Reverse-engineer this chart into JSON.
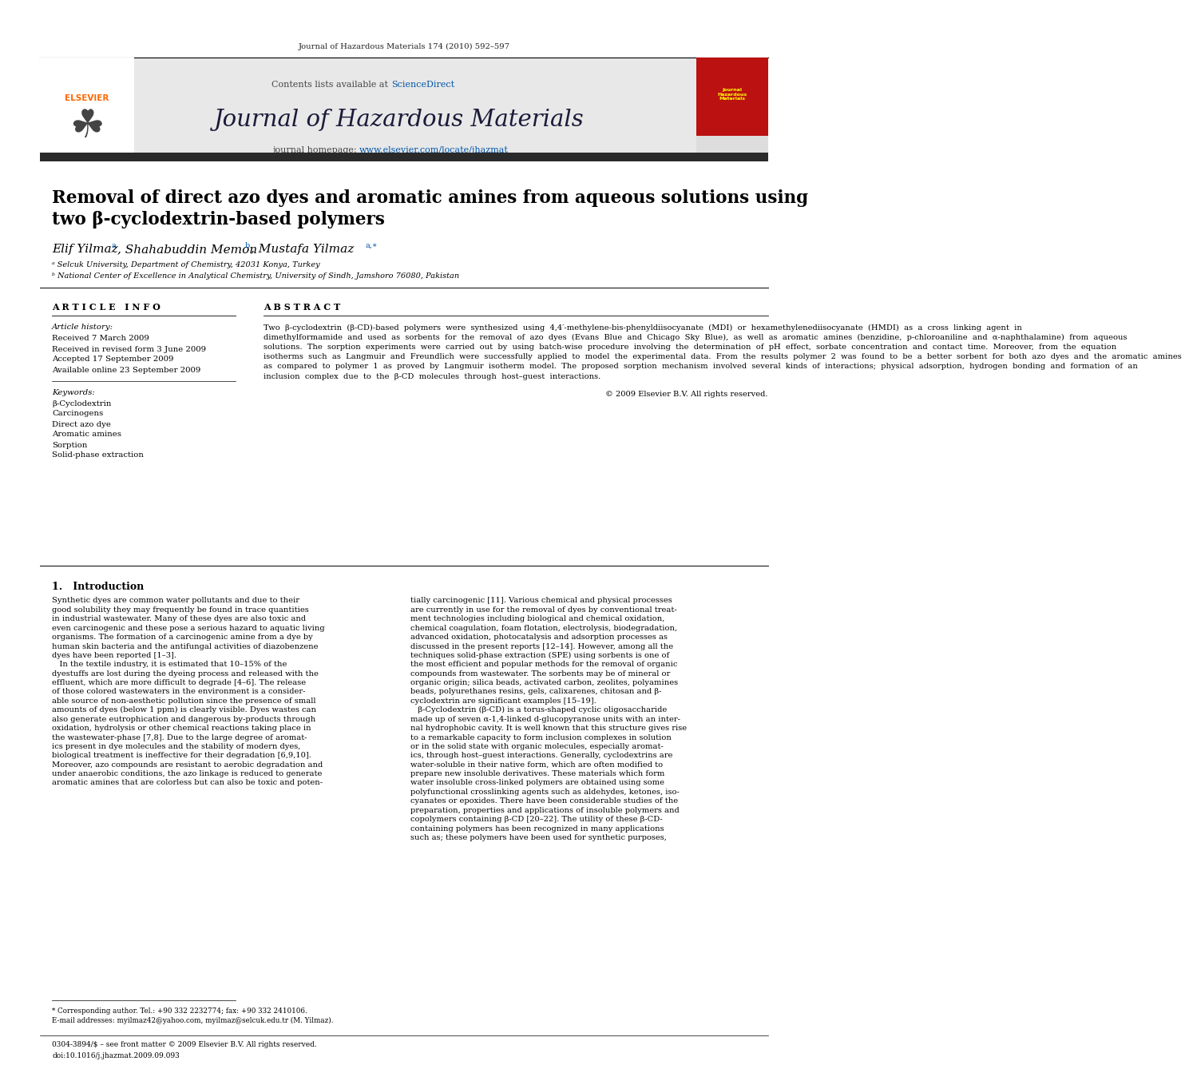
{
  "journal_ref": "Journal of Hazardous Materials 174 (2010) 592–597",
  "contents_text": "Contents lists available at ",
  "sciencedirect_text": "ScienceDirect",
  "journal_name": "Journal of Hazardous Materials",
  "journal_homepage_text": "journal homepage: ",
  "journal_url": "www.elsevier.com/locate/jhazmat",
  "title_line1": "Removal of direct azo dyes and aromatic amines from aqueous solutions using",
  "title_line2": "two β-cyclodextrin-based polymers",
  "article_info_header": "A R T I C L E   I N F O",
  "abstract_header": "A B S T R A C T",
  "article_history_label": "Article history:",
  "received": "Received 7 March 2009",
  "received_revised": "Received in revised form 3 June 2009",
  "accepted": "Accepted 17 September 2009",
  "available": "Available online 23 September 2009",
  "keywords_label": "Keywords:",
  "kw1": "β-Cyclodextrin",
  "kw2": "Carcinogens",
  "kw3": "Direct azo dye",
  "kw4": "Aromatic amines",
  "kw5": "Sorption",
  "kw6": "Solid-phase extraction",
  "copyright": "© 2009 Elsevier B.V. All rights reserved.",
  "intro_heading": "1.   Introduction",
  "affil_a": "ᵃ Selcuk University, Department of Chemistry, 42031 Konya, Turkey",
  "affil_b": "ᵇ National Center of Excellence in Analytical Chemistry, University of Sindh, Jamshoro 76080, Pakistan",
  "footnote1": "* Corresponding author. Tel.: +90 332 2232774; fax: +90 332 2410106.",
  "footnote2": "E-mail addresses: myilmaz42@yahoo.com, myilmaz@selcuk.edu.tr (M. Yilmaz).",
  "footer1": "0304-3894/$ – see front matter © 2009 Elsevier B.V. All rights reserved.",
  "footer2": "doi:10.1016/j.jhazmat.2009.09.093",
  "bg_color": "#ffffff",
  "header_bg": "#e8e8e8",
  "dark_bar": "#2a2a2a",
  "blue_link": "#0055aa",
  "title_color": "#000000",
  "text_color": "#000000",
  "abstract_lines": [
    "Two  β-cyclodextrin  (β-CD)-based  polymers  were  synthesized  using  4,4′-methylene-bis-phenyldiisocyanate  (MDI)  or  hexamethylenediisocyanate  (HMDI)  as  a  cross  linking  agent  in",
    "dimethylformamide  and  used  as  sorbents  for  the  removal  of  azo  dyes  (Evans  Blue  and  Chicago  Sky  Blue),  as  well  as  aromatic  amines  (benzidine,  p-chloroaniline  and  α-naphthalamine)  from  aqueous",
    "solutions.  The  sorption  experiments  were  carried  out  by  using  batch-wise  procedure  involving  the  determination  of  pH  effect,  sorbate  concentration  and  contact  time.  Moreover,  from  the  equation",
    "isotherms  such  as  Langmuir  and  Freundlich  were  successfully  applied  to  model  the  experimental  data.  From  the  results  polymer  2  was  found  to  be  a  better  sorbent  for  both  azo  dyes  and  the  aromatic  amines",
    "as  compared  to  polymer  1  as  proved  by  Langmuir  isotherm  model.  The  proposed  sorption  mechanism  involved  several  kinds  of  interactions;  physical  adsorption,  hydrogen  bonding  and  formation  of  an",
    "inclusion  complex  due  to  the  β-CD  molecules  through  host–guest  interactions."
  ],
  "intro_col1_lines": [
    "Synthetic dyes are common water pollutants and due to their",
    "good solubility they may frequently be found in trace quantities",
    "in industrial wastewater. Many of these dyes are also toxic and",
    "even carcinogenic and these pose a serious hazard to aquatic living",
    "organisms. The formation of a carcinogenic amine from a dye by",
    "human skin bacteria and the antifungal activities of diazobenzene",
    "dyes have been reported [1–3].",
    "   In the textile industry, it is estimated that 10–15% of the",
    "dyestuffs are lost during the dyeing process and released with the",
    "effluent, which are more difficult to degrade [4–6]. The release",
    "of those colored wastewaters in the environment is a consider-",
    "able source of non-aesthetic pollution since the presence of small",
    "amounts of dyes (below 1 ppm) is clearly visible. Dyes wastes can",
    "also generate eutrophication and dangerous by-products through",
    "oxidation, hydrolysis or other chemical reactions taking place in",
    "the wastewater-phase [7,8]. Due to the large degree of aromat-",
    "ics present in dye molecules and the stability of modern dyes,",
    "biological treatment is ineffective for their degradation [6,9,10].",
    "Moreover, azo compounds are resistant to aerobic degradation and",
    "under anaerobic conditions, the azo linkage is reduced to generate",
    "aromatic amines that are colorless but can also be toxic and poten-"
  ],
  "intro_col2_lines": [
    "tially carcinogenic [11]. Various chemical and physical processes",
    "are currently in use for the removal of dyes by conventional treat-",
    "ment technologies including biological and chemical oxidation,",
    "chemical coagulation, foam flotation, electrolysis, biodegradation,",
    "advanced oxidation, photocatalysis and adsorption processes as",
    "discussed in the present reports [12–14]. However, among all the",
    "techniques solid-phase extraction (SPE) using sorbents is one of",
    "the most efficient and popular methods for the removal of organic",
    "compounds from wastewater. The sorbents may be of mineral or",
    "organic origin; silica beads, activated carbon, zeolites, polyamines",
    "beads, polyurethanes resins, gels, calixarenes, chitosan and β-",
    "cyclodextrin are significant examples [15–19].",
    "   β-Cyclodextrin (β-CD) is a torus-shaped cyclic oligosaccharide",
    "made up of seven α-1,4-linked d-glucopyranose units with an inter-",
    "nal hydrophobic cavity. It is well known that this structure gives rise",
    "to a remarkable capacity to form inclusion complexes in solution",
    "or in the solid state with organic molecules, especially aromat-",
    "ics, through host–guest interactions. Generally, cyclodextrins are",
    "water-soluble in their native form, which are often modified to",
    "prepare new insoluble derivatives. These materials which form",
    "water insoluble cross-linked polymers are obtained using some",
    "polyfunctional crosslinking agents such as aldehydes, ketones, iso-",
    "cyanates or epoxides. There have been considerable studies of the",
    "preparation, properties and applications of insoluble polymers and",
    "copolymers containing β-CD [20–22]. The utility of these β-CD-",
    "containing polymers has been recognized in many applications",
    "such as; these polymers have been used for synthetic purposes,"
  ]
}
